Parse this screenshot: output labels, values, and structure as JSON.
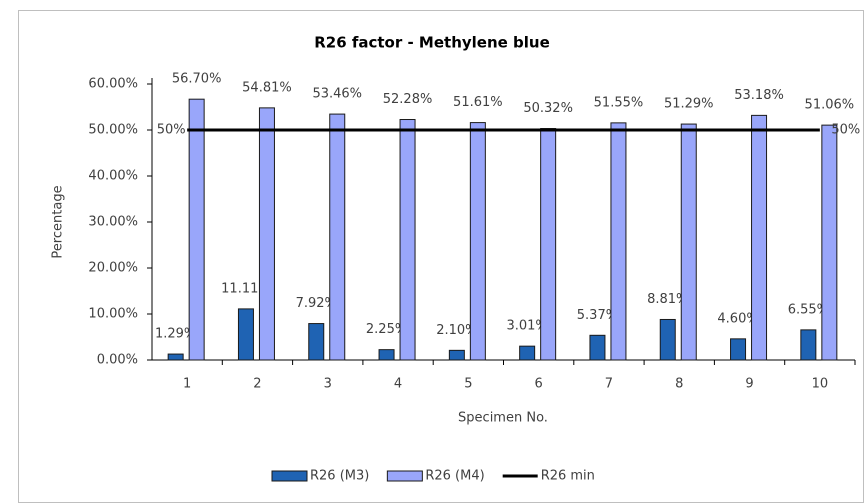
{
  "chart_data": {
    "type": "bar",
    "title": "R26 factor - Methylene blue",
    "y_label": "Percentage",
    "x_label": "Specimen No.",
    "categories": [
      "1",
      "2",
      "3",
      "4",
      "5",
      "6",
      "7",
      "8",
      "9",
      "10"
    ],
    "ylim": [
      0,
      60
    ],
    "yticks": [
      {
        "value": 0,
        "label": "0.00%"
      },
      {
        "value": 10,
        "label": "10.00%"
      },
      {
        "value": 20,
        "label": "20.00%"
      },
      {
        "value": 30,
        "label": "30.00%"
      },
      {
        "value": 40,
        "label": "40.00%"
      },
      {
        "value": 50,
        "label": "50.00%"
      },
      {
        "value": 60,
        "label": "60.00%"
      }
    ],
    "legend": "bottom",
    "series": [
      {
        "name": "R26 (M3)",
        "type": "bar",
        "color": "#1f63b3",
        "values": [
          1.29,
          11.11,
          7.92,
          2.25,
          2.1,
          3.01,
          5.37,
          8.81,
          4.6,
          6.55
        ],
        "value_labels": [
          "1.29%",
          "11.11%",
          "7.92%",
          "2.25%",
          "2.10%",
          "3.01%",
          "5.37%",
          "8.81%",
          "4.60%",
          "6.55%"
        ]
      },
      {
        "name": "R26 (M4)",
        "type": "bar",
        "color": "#99a6fa",
        "values": [
          56.7,
          54.81,
          53.46,
          52.28,
          51.61,
          50.32,
          51.55,
          51.29,
          53.18,
          51.06
        ],
        "value_labels": [
          "56.70%",
          "54.81%",
          "53.46%",
          "52.28%",
          "51.61%",
          "50.32%",
          "51.55%",
          "51.29%",
          "53.18%",
          "51.06%"
        ]
      },
      {
        "name": "R26 min",
        "type": "line",
        "color": "#000000",
        "values": [
          50,
          50,
          50,
          50,
          50,
          50,
          50,
          50,
          50,
          50
        ],
        "value_labels": [
          "50%",
          null,
          null,
          null,
          null,
          null,
          null,
          null,
          null,
          "50%"
        ]
      }
    ]
  }
}
